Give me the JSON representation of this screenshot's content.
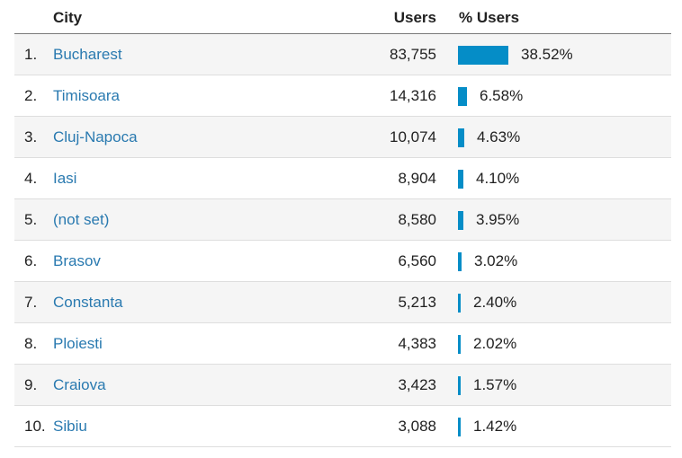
{
  "columns": {
    "city": "City",
    "users": "Users",
    "pct": "% Users"
  },
  "accent_color": "#058dc7",
  "link_color": "#2a7ab0",
  "rows": [
    {
      "rank": "1.",
      "city": "Bucharest",
      "users": "83,755",
      "pct": "38.52%",
      "share": 38.52
    },
    {
      "rank": "2.",
      "city": "Timisoara",
      "users": "14,316",
      "pct": "6.58%",
      "share": 6.58
    },
    {
      "rank": "3.",
      "city": "Cluj-Napoca",
      "users": "10,074",
      "pct": "4.63%",
      "share": 4.63
    },
    {
      "rank": "4.",
      "city": "Iasi",
      "users": "8,904",
      "pct": "4.10%",
      "share": 4.1
    },
    {
      "rank": "5.",
      "city": "(not set)",
      "users": "8,580",
      "pct": "3.95%",
      "share": 3.95
    },
    {
      "rank": "6.",
      "city": "Brasov",
      "users": "6,560",
      "pct": "3.02%",
      "share": 3.02
    },
    {
      "rank": "7.",
      "city": "Constanta",
      "users": "5,213",
      "pct": "2.40%",
      "share": 2.4
    },
    {
      "rank": "8.",
      "city": "Ploiesti",
      "users": "4,383",
      "pct": "2.02%",
      "share": 2.02
    },
    {
      "rank": "9.",
      "city": "Craiova",
      "users": "3,423",
      "pct": "1.57%",
      "share": 1.57
    },
    {
      "rank": "10.",
      "city": "Sibiu",
      "users": "3,088",
      "pct": "1.42%",
      "share": 1.42
    }
  ]
}
